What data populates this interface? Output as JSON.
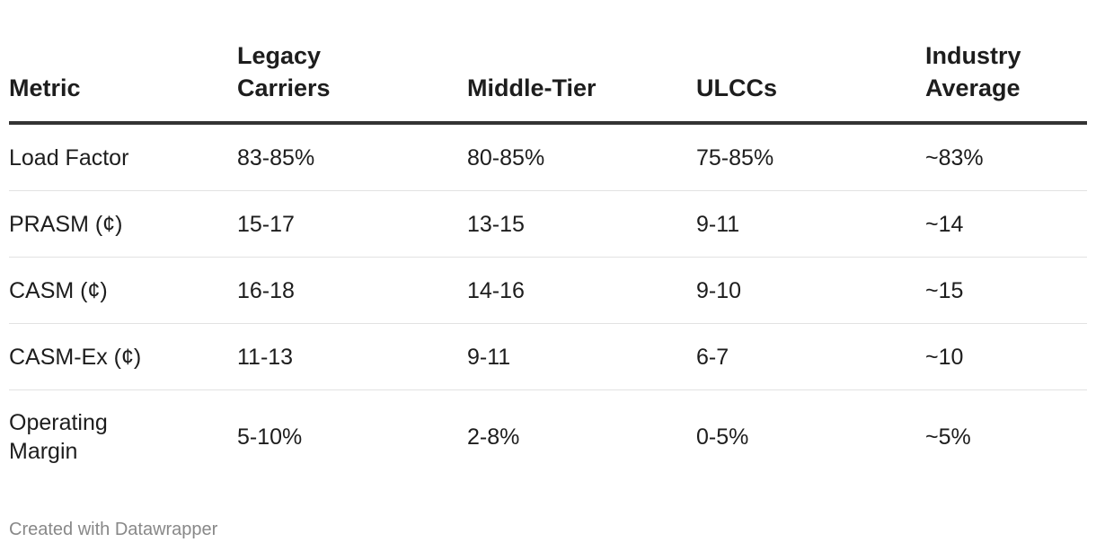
{
  "chart_data": {
    "type": "table",
    "columns": [
      "Metric",
      "Legacy Carriers",
      "Middle-Tier",
      "ULCCs",
      "Industry Average"
    ],
    "rows": [
      [
        "Load Factor",
        "83-85%",
        "80-85%",
        "75-85%",
        "~83%"
      ],
      [
        "PRASM (¢)",
        "15-17",
        "13-15",
        "9-11",
        "~14"
      ],
      [
        "CASM (¢)",
        "16-18",
        "14-16",
        "9-10",
        "~15"
      ],
      [
        "CASM-Ex (¢)",
        "11-13",
        "9-11",
        "6-7",
        "~10"
      ],
      [
        "Operating Margin",
        "5-10%",
        "2-8%",
        "0-5%",
        "~5%"
      ]
    ]
  },
  "footer": {
    "credit": "Created with Datawrapper"
  },
  "colors": {
    "text": "#1d1d1d",
    "header_rule": "#333333",
    "row_rule": "#e2e2e2",
    "footer_text": "#888888"
  }
}
